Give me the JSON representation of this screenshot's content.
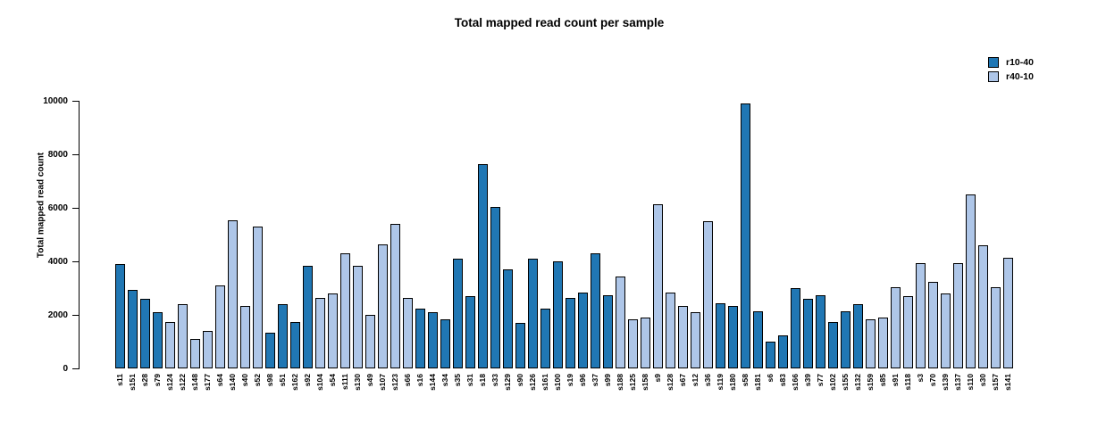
{
  "title": "Total mapped read count per sample",
  "legend": {
    "items": [
      {
        "label": "r10-40",
        "color": "#2077b4"
      },
      {
        "label": "r40-10",
        "color": "#aec6e8"
      }
    ]
  },
  "chart_data": {
    "type": "bar",
    "title": "Total mapped read count per sample",
    "xlabel": "",
    "ylabel": "Total mapped read count",
    "ylim": [
      0,
      10000
    ],
    "yticks": [
      0,
      2000,
      4000,
      6000,
      8000,
      10000
    ],
    "grid": false,
    "legend_position": "top-right",
    "bar_edge_color": "#000000",
    "series_colors": {
      "r10-40": "#2077b4",
      "r40-10": "#aec6e8"
    },
    "categories": [
      "s11",
      "s151",
      "s28",
      "s79",
      "s124",
      "s122",
      "s148",
      "s177",
      "s64",
      "s140",
      "s40",
      "s52",
      "s98",
      "s51",
      "s162",
      "s92",
      "s104",
      "s54",
      "s111",
      "s130",
      "s49",
      "s107",
      "s123",
      "s66",
      "s16",
      "s144",
      "s34",
      "s35",
      "s31",
      "s18",
      "s33",
      "s129",
      "s90",
      "s126",
      "s161",
      "s100",
      "s19",
      "s96",
      "s37",
      "s99",
      "s188",
      "s125",
      "s158",
      "s9",
      "s128",
      "s67",
      "s12",
      "s36",
      "s119",
      "s180",
      "s58",
      "s181",
      "s6",
      "s83",
      "s166",
      "s39",
      "s77",
      "s102",
      "s155",
      "s132",
      "s159",
      "s85",
      "s91",
      "s118",
      "s3",
      "s70",
      "s139",
      "s137",
      "s110",
      "s30",
      "s157",
      "s141"
    ],
    "values": [
      3900,
      2950,
      2600,
      2100,
      1750,
      2400,
      1100,
      1400,
      3100,
      5550,
      2350,
      5300,
      1350,
      2400,
      1750,
      3850,
      2650,
      2800,
      4300,
      3850,
      2000,
      4650,
      5400,
      2650,
      2250,
      2100,
      1850,
      4100,
      2700,
      7650,
      6050,
      3700,
      1700,
      4100,
      2250,
      4000,
      2650,
      2850,
      4300,
      2750,
      3450,
      1850,
      1900,
      6150,
      2850,
      2350,
      2100,
      5500,
      2450,
      2350,
      9900,
      2150,
      1000,
      1250,
      3000,
      2600,
      2750,
      1750,
      2150,
      2400,
      1850,
      1900,
      3050,
      2700,
      3950,
      3250,
      2800,
      3950,
      6500,
      4600,
      3050,
      4150
    ],
    "groups": [
      "r10-40",
      "r10-40",
      "r10-40",
      "r10-40",
      "r40-10",
      "r40-10",
      "r40-10",
      "r40-10",
      "r40-10",
      "r40-10",
      "r40-10",
      "r40-10",
      "r10-40",
      "r10-40",
      "r10-40",
      "r10-40",
      "r40-10",
      "r40-10",
      "r40-10",
      "r40-10",
      "r40-10",
      "r40-10",
      "r40-10",
      "r40-10",
      "r10-40",
      "r10-40",
      "r10-40",
      "r10-40",
      "r10-40",
      "r10-40",
      "r10-40",
      "r10-40",
      "r10-40",
      "r10-40",
      "r10-40",
      "r10-40",
      "r10-40",
      "r10-40",
      "r10-40",
      "r10-40",
      "r40-10",
      "r40-10",
      "r40-10",
      "r40-10",
      "r40-10",
      "r40-10",
      "r40-10",
      "r40-10",
      "r10-40",
      "r10-40",
      "r10-40",
      "r10-40",
      "r10-40",
      "r10-40",
      "r10-40",
      "r10-40",
      "r10-40",
      "r10-40",
      "r10-40",
      "r10-40",
      "r40-10",
      "r40-10",
      "r40-10",
      "r40-10",
      "r40-10",
      "r40-10",
      "r40-10",
      "r40-10",
      "r40-10",
      "r40-10",
      "r40-10",
      "r40-10"
    ]
  }
}
